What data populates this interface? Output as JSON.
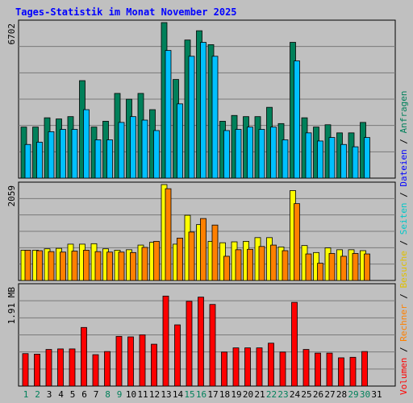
{
  "title": "Tages-Statistik im Monat November 2025",
  "colors": {
    "background": "#c0c0c0",
    "anfragen": "#00805a",
    "dateien": "#00c0ff",
    "seiten": "#00c8c8",
    "besuche": "#ffff00",
    "rechner": "#ff8000",
    "volumen": "#ff0000",
    "title": "#0000ff",
    "weekend_day": "#00805a",
    "weekday": "#000000",
    "grid": "#7a7a7a"
  },
  "legend": {
    "separator": " / ",
    "items": [
      {
        "label": "Anfragen",
        "color": "#00805a"
      },
      {
        "label": "Dateien",
        "color": "#0000ff"
      },
      {
        "label": "Seiten",
        "color": "#00c8c8"
      },
      {
        "label": "Besuche",
        "color": "#e0c000"
      },
      {
        "label": "Rechner",
        "color": "#ff8000"
      },
      {
        "label": "Volumen",
        "color": "#ff0000"
      }
    ]
  },
  "chart_data": {
    "type": "bar",
    "title": "Tages-Statistik im Monat November 2025",
    "categories": [
      "1",
      "2",
      "3",
      "4",
      "5",
      "6",
      "7",
      "8",
      "9",
      "10",
      "11",
      "12",
      "13",
      "14",
      "15",
      "16",
      "17",
      "18",
      "19",
      "20",
      "21",
      "22",
      "23",
      "24",
      "25",
      "26",
      "27",
      "28",
      "29",
      "30",
      "31"
    ],
    "weekend_days": [
      "1",
      "2",
      "8",
      "9",
      "15",
      "16",
      "22",
      "23",
      "29",
      "30"
    ],
    "panels": [
      {
        "name": "top",
        "ymax_label": "6702",
        "ylim": [
          0,
          6702
        ],
        "series": [
          {
            "name": "Anfragen",
            "values": [
              2200,
              2200,
              2600,
              2550,
              2650,
              4200,
              2200,
              2450,
              3650,
              3400,
              3650,
              2950,
              6702,
              4250,
              5950,
              6350,
              5750,
              2450,
              2700,
              2650,
              2650,
              3050,
              2350,
              5850,
              2600,
              2200,
              2300,
              1950,
              1950,
              2400,
              null
            ]
          },
          {
            "name": "Dateien",
            "values": [
              1450,
              1550,
              2000,
              2100,
              2100,
              2950,
              1650,
              1650,
              2400,
              2650,
              2500,
              2050,
              5500,
              3200,
              5250,
              5850,
              5250,
              2050,
              2100,
              2200,
              2100,
              2200,
              1650,
              5050,
              1950,
              1600,
              1750,
              1450,
              1350,
              1750,
              null
            ]
          }
        ]
      },
      {
        "name": "middle",
        "ymax_label": "2059",
        "ylim": [
          0,
          2059
        ],
        "series": [
          {
            "name": "Besuche",
            "values": [
              650,
              650,
              680,
              690,
              780,
              780,
              790,
              680,
              650,
              660,
              760,
              820,
              2059,
              780,
              1400,
              1200,
              840,
              810,
              830,
              840,
              920,
              920,
              720,
              1930,
              750,
              600,
              700,
              660,
              660,
              640,
              null
            ]
          },
          {
            "name": "Rechner",
            "values": [
              650,
              640,
              620,
              610,
              630,
              650,
              620,
              610,
              610,
              600,
              710,
              840,
              1970,
              910,
              1040,
              1330,
              1190,
              520,
              660,
              670,
              730,
              760,
              640,
              1650,
              570,
              370,
              580,
              520,
              580,
              570,
              null
            ]
          }
        ]
      },
      {
        "name": "bottom",
        "ymax_label": "1.91 MB",
        "ylim": [
          0,
          1.91
        ],
        "series": [
          {
            "name": "Volumen",
            "values": [
              0.62,
              0.61,
              0.7,
              0.71,
              0.71,
              1.12,
              0.6,
              0.66,
              0.95,
              0.94,
              0.98,
              0.8,
              1.72,
              1.17,
              1.62,
              1.7,
              1.56,
              0.65,
              0.73,
              0.73,
              0.73,
              0.82,
              0.65,
              1.6,
              0.7,
              0.63,
              0.63,
              0.54,
              0.55,
              0.66,
              null
            ]
          }
        ]
      }
    ]
  }
}
